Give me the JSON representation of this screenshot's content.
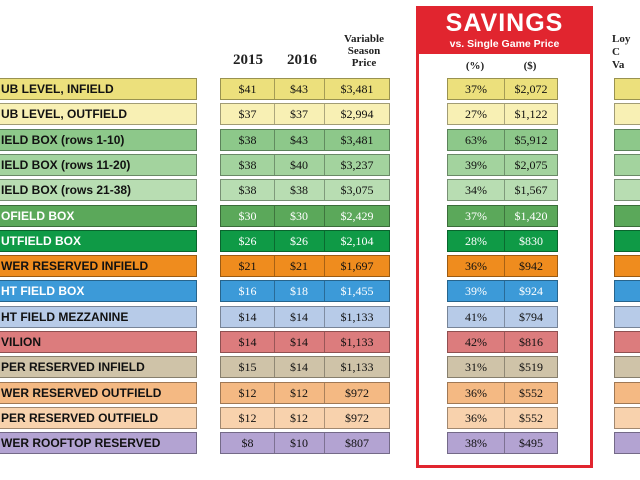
{
  "headers": {
    "year1": "2015",
    "year2": "2016",
    "variable_line1": "Variable",
    "variable_line2": "Season",
    "variable_line3": "Price",
    "savings_title": "SAVINGS",
    "savings_subtitle": "vs. Single Game Price",
    "pct_col": "(%)",
    "dollar_col": "($)",
    "loyalty_line1": "Loy",
    "loyalty_line2": "C",
    "loyalty_line3": "Va"
  },
  "rows": [
    {
      "label": "UB LEVEL, INFIELD",
      "p2015": "$41",
      "p2016": "$43",
      "variable": "$3,481",
      "pct": "37%",
      "dollars": "$2,072",
      "color": "#ece07c",
      "text": "dark"
    },
    {
      "label": "UB LEVEL, OUTFIELD",
      "p2015": "$37",
      "p2016": "$37",
      "variable": "$2,994",
      "pct": "27%",
      "dollars": "$1,122",
      "color": "#f8f0b4",
      "text": "dark"
    },
    {
      "label": "IELD BOX (rows 1-10)",
      "p2015": "$38",
      "p2016": "$43",
      "variable": "$3,481",
      "pct": "63%",
      "dollars": "$5,912",
      "color": "#8dc88a",
      "text": "dark"
    },
    {
      "label": "IELD BOX (rows 11-20)",
      "p2015": "$38",
      "p2016": "$40",
      "variable": "$3,237",
      "pct": "39%",
      "dollars": "$2,075",
      "color": "#a3d39e",
      "text": "dark"
    },
    {
      "label": "IELD BOX (rows 21-38)",
      "p2015": "$38",
      "p2016": "$38",
      "variable": "$3,075",
      "pct": "34%",
      "dollars": "$1,567",
      "color": "#b8ddb2",
      "text": "dark"
    },
    {
      "label": "OFIELD BOX",
      "p2015": "$30",
      "p2016": "$30",
      "variable": "$2,429",
      "pct": "37%",
      "dollars": "$1,420",
      "color": "#5ba85a",
      "text": "light"
    },
    {
      "label": "UTFIELD BOX",
      "p2015": "$26",
      "p2016": "$26",
      "variable": "$2,104",
      "pct": "28%",
      "dollars": "$830",
      "color": "#0f9a46",
      "text": "light"
    },
    {
      "label": "WER RESERVED INFIELD",
      "p2015": "$21",
      "p2016": "$21",
      "variable": "$1,697",
      "pct": "36%",
      "dollars": "$942",
      "color": "#ef8c1e",
      "text": "dark"
    },
    {
      "label": "HT FIELD BOX",
      "p2015": "$16",
      "p2016": "$18",
      "variable": "$1,455",
      "pct": "39%",
      "dollars": "$924",
      "color": "#3c9ad8",
      "text": "light"
    },
    {
      "label": "HT FIELD MEZZANINE",
      "p2015": "$14",
      "p2016": "$14",
      "variable": "$1,133",
      "pct": "41%",
      "dollars": "$794",
      "color": "#b7cbe8",
      "text": "dark"
    },
    {
      "label": "VILION",
      "p2015": "$14",
      "p2016": "$14",
      "variable": "$1,133",
      "pct": "42%",
      "dollars": "$816",
      "color": "#dc7c7d",
      "text": "dark"
    },
    {
      "label": "PER RESERVED INFIELD",
      "p2015": "$15",
      "p2016": "$14",
      "variable": "$1,133",
      "pct": "31%",
      "dollars": "$519",
      "color": "#cfc3a8",
      "text": "dark"
    },
    {
      "label": "WER RESERVED OUTFIELD",
      "p2015": "$12",
      "p2016": "$12",
      "variable": "$972",
      "pct": "36%",
      "dollars": "$552",
      "color": "#f4b983",
      "text": "dark"
    },
    {
      "label": "PER RESERVED OUTFIELD",
      "p2015": "$12",
      "p2016": "$12",
      "variable": "$972",
      "pct": "36%",
      "dollars": "$552",
      "color": "#f8d2ad",
      "text": "dark"
    },
    {
      "label": "WER ROOFTOP RESERVED",
      "p2015": "$8",
      "p2016": "$10",
      "variable": "$807",
      "pct": "38%",
      "dollars": "$495",
      "color": "#b3a3d2",
      "text": "dark"
    }
  ]
}
